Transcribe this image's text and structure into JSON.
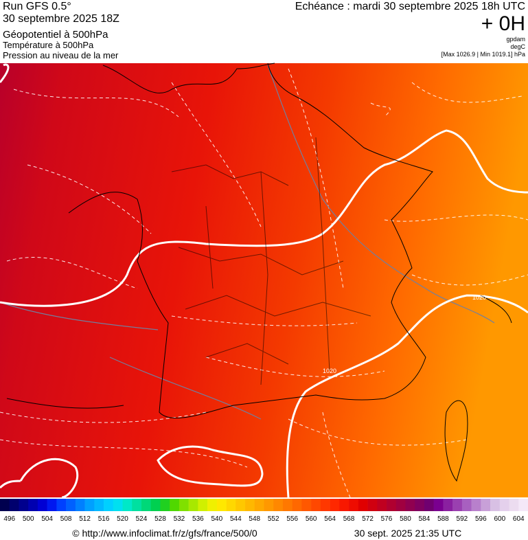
{
  "header": {
    "run": "Run GFS 0.5°",
    "date": "30 septembre 2025 18Z",
    "field1": "Géopotentiel à 500hPa",
    "field2": "Température à 500hPa",
    "field3": "Pression au niveau de la mer",
    "deadline": "Echéance : mardi 30 septembre 2025 18h UTC",
    "offset": "+ 0H",
    "unit1": "gpdam",
    "unit2": "degC",
    "pressure_range": "[Max 1026.9 | Min 1019.1] hPa"
  },
  "map": {
    "contour_labels": [
      "1020",
      "1020"
    ]
  },
  "legend": {
    "labels": [
      496,
      500,
      504,
      508,
      512,
      516,
      520,
      524,
      528,
      532,
      536,
      540,
      544,
      548,
      552,
      556,
      560,
      564,
      568,
      572,
      576,
      580,
      584,
      588,
      592,
      596,
      600,
      604
    ],
    "colors": [
      "#00004f",
      "#00006e",
      "#00008e",
      "#0000b0",
      "#0000d4",
      "#0018f0",
      "#0040ff",
      "#0060ff",
      "#0080ff",
      "#00a0ff",
      "#00b8ff",
      "#00d0ff",
      "#00e0f0",
      "#00e8c8",
      "#00e0a0",
      "#00d878",
      "#00d050",
      "#20d020",
      "#50d800",
      "#80e000",
      "#a8e800",
      "#d0f000",
      "#f0f000",
      "#ffe800",
      "#ffd800",
      "#ffc800",
      "#ffb800",
      "#ffa800",
      "#ff9800",
      "#ff8800",
      "#ff7800",
      "#ff6800",
      "#ff5800",
      "#ff4800",
      "#ff3800",
      "#ff2800",
      "#f81800",
      "#ee0c00",
      "#e00000",
      "#d00010",
      "#c00020",
      "#b00030",
      "#a00040",
      "#900050",
      "#800060",
      "#700070",
      "#7a0090",
      "#8a20a0",
      "#9a40b0",
      "#a860c0",
      "#b880cc",
      "#c8a0d8",
      "#d8c0e4",
      "#e4d0ec",
      "#ecdcf0",
      "#f4e8f8"
    ]
  },
  "footer": {
    "url": "© http://www.infoclimat.fr/z/gfs/france/500/0",
    "timestamp": "30 sept. 2025 21:35 UTC"
  }
}
